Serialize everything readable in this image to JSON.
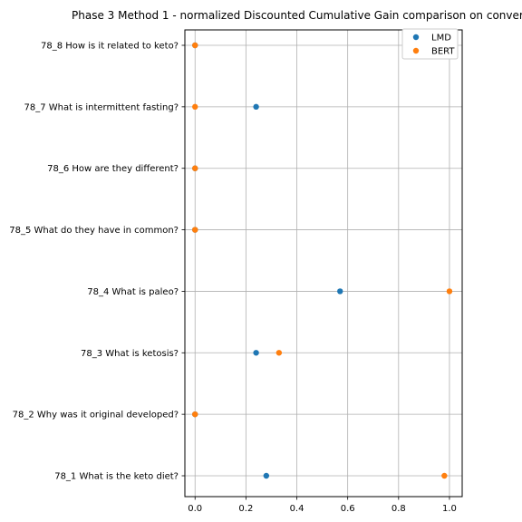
{
  "chart_data": {
    "type": "scatter",
    "title": "Phase 3 Method 1 - normalized Discounted Cumulative Gain comparison on conver",
    "xlabel": "",
    "ylabel": "",
    "xlim": [
      -0.04,
      1.05
    ],
    "xticks": [
      "0.0",
      "0.2",
      "0.4",
      "0.6",
      "0.8",
      "1.0"
    ],
    "categories": [
      "78_1 What is the keto diet?",
      "78_2 Why was it original developed?",
      "78_3 What is ketosis?",
      "78_4 What is paleo?",
      "78_5 What do they have in common?",
      "78_6 How are they different?",
      "78_7 What is intermittent fasting?",
      "78_8 How is it related to keto?"
    ],
    "series": [
      {
        "name": "LMD",
        "color": "#1f77b4",
        "values": [
          0.28,
          0.0,
          0.24,
          0.57,
          0.0,
          0.0,
          0.24,
          0.0
        ]
      },
      {
        "name": "BERT",
        "color": "#ff7f0e",
        "values": [
          0.98,
          0.0,
          0.33,
          1.0,
          0.0,
          0.0,
          0.0,
          0.0
        ]
      }
    ],
    "grid": true,
    "legend_position": "top-right"
  }
}
